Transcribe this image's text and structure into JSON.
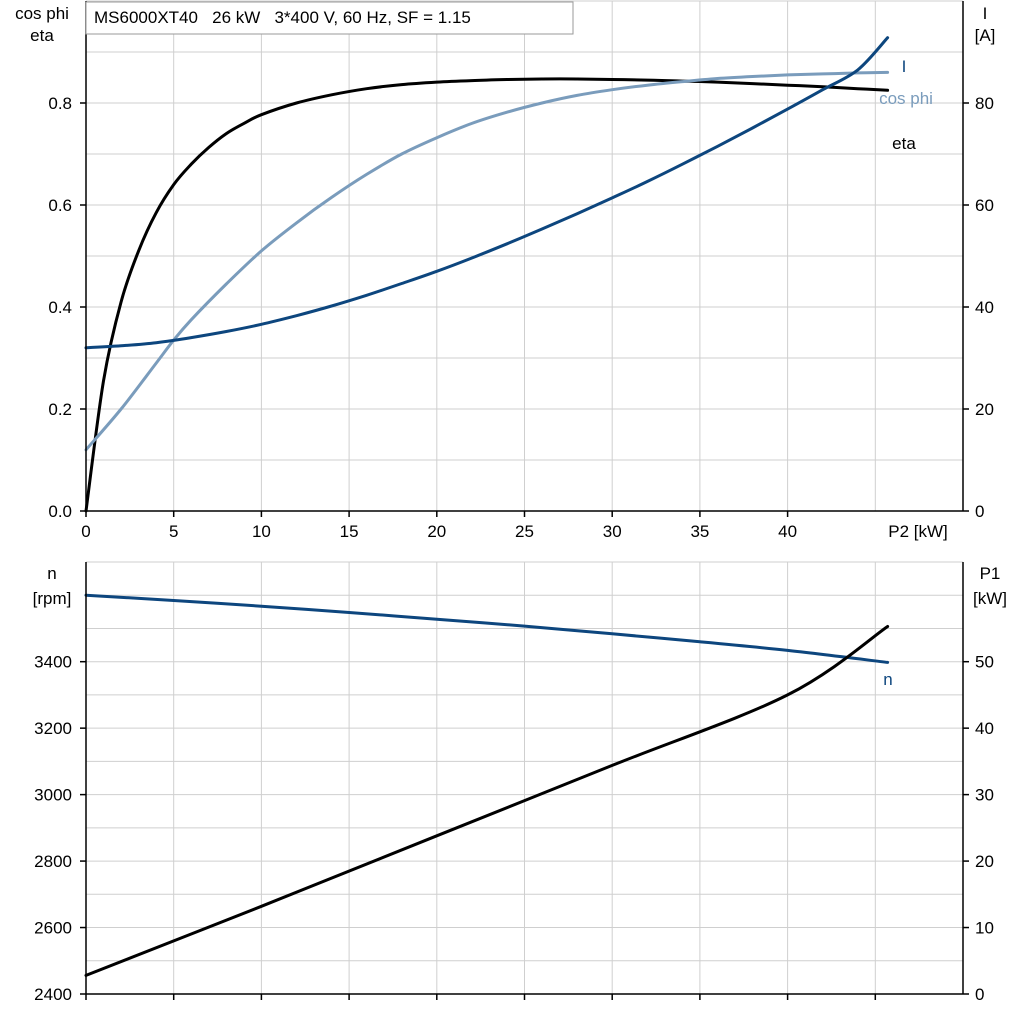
{
  "colors": {
    "eta": "#000000",
    "cos_phi": "#7a9cbc",
    "current": "#0d467e",
    "speed": "#0d467e",
    "p1": "#000000",
    "grid": "#cfcfcf",
    "axis": "#000000"
  },
  "chart_data": [
    {
      "type": "line",
      "title": "MS6000XT40   26 kW   3*400 V, 60 Hz, SF = 1.15",
      "xlabel": "P2 [kW]",
      "ylabel_left": [
        "cos phi",
        "eta"
      ],
      "ylabel_right": [
        "I",
        "[A]"
      ],
      "xlim": [
        0,
        50
      ],
      "ylim_left": [
        0,
        1.0
      ],
      "ylim_right": [
        0,
        100
      ],
      "grid": true,
      "x_ticks": [
        "0",
        "5",
        "10",
        "15",
        "20",
        "25",
        "30",
        "35",
        "40"
      ],
      "y_left_ticks": [
        "0.0",
        "0.2",
        "0.4",
        "0.6",
        "0.8"
      ],
      "y_right_ticks": [
        "0",
        "20",
        "40",
        "60",
        "80"
      ],
      "series": [
        {
          "name": "eta",
          "axis": "left",
          "x": [
            0,
            1,
            2,
            3,
            4,
            5,
            6,
            7,
            8,
            9,
            10,
            12,
            14,
            16,
            18,
            20,
            22,
            24,
            26,
            28,
            30,
            32,
            34,
            36,
            38,
            40,
            42,
            44,
            45.7
          ],
          "y": [
            0,
            0.255,
            0.41,
            0.51,
            0.585,
            0.64,
            0.68,
            0.713,
            0.74,
            0.76,
            0.777,
            0.8,
            0.816,
            0.828,
            0.836,
            0.841,
            0.844,
            0.846,
            0.847,
            0.847,
            0.846,
            0.845,
            0.843,
            0.841,
            0.838,
            0.835,
            0.832,
            0.828,
            0.825
          ]
        },
        {
          "name": "cos phi",
          "axis": "left",
          "x": [
            0,
            2,
            4,
            5,
            6,
            8,
            10,
            12,
            14,
            16,
            18,
            20,
            22,
            24,
            26,
            28,
            30,
            32,
            34,
            36,
            38,
            40,
            42,
            44,
            45.7
          ],
          "y": [
            0.12,
            0.2,
            0.29,
            0.335,
            0.375,
            0.445,
            0.51,
            0.565,
            0.615,
            0.66,
            0.7,
            0.732,
            0.76,
            0.782,
            0.8,
            0.815,
            0.826,
            0.835,
            0.842,
            0.848,
            0.852,
            0.855,
            0.857,
            0.859,
            0.86
          ]
        },
        {
          "name": "I",
          "axis": "right",
          "x": [
            0,
            2,
            4,
            6,
            8,
            10,
            12,
            14,
            16,
            18,
            20,
            22,
            24,
            26,
            28,
            30,
            32,
            34,
            36,
            38,
            40,
            42,
            44,
            45.7
          ],
          "y": [
            32,
            32.4,
            33,
            34,
            35.2,
            36.6,
            38.3,
            40.2,
            42.3,
            44.6,
            47,
            49.6,
            52.4,
            55.3,
            58.3,
            61.4,
            64.6,
            68,
            71.5,
            75.1,
            78.8,
            82.6,
            86.5,
            92.8
          ]
        }
      ],
      "series_labels": {
        "I": "I",
        "cos phi": "cos phi",
        "eta": "eta"
      }
    },
    {
      "type": "line",
      "xlabel": "",
      "ylabel_left": [
        "n",
        "[rpm]"
      ],
      "ylabel_right": [
        "P1",
        "[kW]"
      ],
      "xlim": [
        0,
        50
      ],
      "ylim_left": [
        2400,
        3700
      ],
      "ylim_right": [
        0,
        65
      ],
      "grid": true,
      "y_left_ticks": [
        "2400",
        "2600",
        "2800",
        "3000",
        "3200",
        "3400"
      ],
      "y_right_ticks": [
        "0",
        "10",
        "20",
        "30",
        "40",
        "50"
      ],
      "series": [
        {
          "name": "n",
          "axis": "left",
          "x": [
            0,
            5,
            10,
            15,
            20,
            25,
            30,
            35,
            40,
            45.7
          ],
          "y": [
            3600,
            3584,
            3567,
            3548,
            3528,
            3507,
            3484,
            3460,
            3434,
            3398
          ]
        },
        {
          "name": "P1",
          "axis": "right",
          "x": [
            0,
            10,
            20,
            30,
            40,
            45.7
          ],
          "y": [
            2.8,
            13.2,
            23.8,
            34.4,
            45.0,
            55.3
          ]
        }
      ],
      "series_labels": {
        "n": "n"
      }
    }
  ]
}
